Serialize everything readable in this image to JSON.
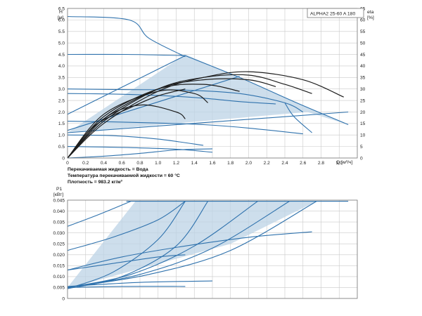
{
  "chart_data": [
    {
      "type": "line",
      "title": "ALPHA2 25-60 A 180",
      "xlabel": "Q [м³/ч]",
      "ylabel": "H [м]",
      "ylabel_right": "eta [%]",
      "xlim": [
        0,
        3.2
      ],
      "ylim": [
        0,
        6.5
      ],
      "ylim_right": [
        0,
        65
      ],
      "xticks": [
        "0",
        "0.2",
        "0.4",
        "0.6",
        "0.8",
        "1.0",
        "1.2",
        "1.4",
        "1.6",
        "1.8",
        "2.0",
        "2.2",
        "2.4",
        "2.6",
        "2.8",
        "3.0"
      ],
      "yticks": [
        "0",
        "0.5",
        "1.0",
        "1.5",
        "2.0",
        "2.5",
        "3.0",
        "3.5",
        "4.0",
        "4.5",
        "5.0",
        "5.5",
        "6.0",
        "6.5"
      ],
      "yticks_right": [
        "0",
        "5",
        "10",
        "15",
        "20",
        "25",
        "30",
        "35",
        "40",
        "45",
        "50",
        "55",
        "60",
        "65"
      ],
      "grid": true,
      "shaded_region": [
        [
          0,
          1.1
        ],
        [
          1.3,
          4.5
        ],
        [
          3.1,
          1.45
        ],
        [
          2.65,
          2.0
        ]
      ],
      "series": [
        {
          "kind": "pump",
          "x": [
            0,
            0.65,
            1.3
          ],
          "y": [
            4.5,
            4.5,
            4.45
          ]
        },
        {
          "kind": "pump",
          "x": [
            1.3,
            1.9,
            2.5,
            3.1
          ],
          "y": [
            4.45,
            3.5,
            2.45,
            1.45
          ]
        },
        {
          "kind": "pump",
          "x": [
            0,
            0.68,
            0.9,
            1.3
          ],
          "y": [
            6.15,
            6.0,
            5.2,
            4.4
          ]
        },
        {
          "kind": "pump",
          "x": [
            0,
            0.7,
            1.3,
            1.9,
            2.4,
            2.6
          ],
          "y": [
            3.0,
            2.97,
            2.95,
            2.8,
            2.4,
            2.0
          ]
        },
        {
          "kind": "pump",
          "x": [
            2.4,
            2.5,
            2.7
          ],
          "y": [
            2.4,
            1.8,
            1.1
          ]
        },
        {
          "kind": "pump",
          "x": [
            0,
            0.5,
            1.0,
            1.5,
            1.9,
            2.3
          ],
          "y": [
            2.8,
            2.78,
            2.72,
            2.6,
            2.45,
            2.35
          ]
        },
        {
          "kind": "pump",
          "x": [
            0,
            0.5,
            1.0,
            1.5,
            2.0,
            2.6
          ],
          "y": [
            1.6,
            1.57,
            1.52,
            1.45,
            1.3,
            1.05
          ]
        },
        {
          "kind": "pump",
          "x": [
            0,
            0.5,
            1.0,
            1.5
          ],
          "y": [
            1.0,
            0.97,
            0.82,
            0.55
          ]
        },
        {
          "kind": "pump",
          "x": [
            0,
            0.6,
            1.2,
            1.6
          ],
          "y": [
            0.5,
            0.46,
            0.38,
            0.25
          ]
        },
        {
          "kind": "pump",
          "x": [
            0,
            0.4,
            0.8,
            1.2,
            1.6
          ],
          "y": [
            0.0,
            0.08,
            0.2,
            0.35,
            0.4
          ]
        },
        {
          "kind": "pump",
          "x": [
            0,
            1.3
          ],
          "y": [
            1.9,
            4.45
          ]
        },
        {
          "kind": "pump",
          "x": [
            0,
            1.9
          ],
          "y": [
            1.2,
            3.55
          ]
        },
        {
          "kind": "pump",
          "x": [
            0,
            3.1
          ],
          "y": [
            1.1,
            2.0
          ]
        },
        {
          "kind": "efficiency",
          "x": [
            0,
            0.4,
            1.0,
            1.5,
            2.0,
            2.6,
            3.05
          ],
          "y": [
            0,
            15,
            29,
            35,
            37.5,
            34,
            26.5
          ]
        },
        {
          "kind": "efficiency",
          "x": [
            0,
            0.4,
            1.0,
            1.5,
            2.0,
            2.4,
            2.7
          ],
          "y": [
            0,
            16,
            30,
            35,
            36,
            32,
            28
          ]
        },
        {
          "kind": "efficiency",
          "x": [
            0,
            0.4,
            1.0,
            1.5,
            2.0,
            2.3
          ],
          "y": [
            0,
            17,
            30,
            34,
            34,
            31
          ]
        },
        {
          "kind": "efficiency",
          "x": [
            0,
            0.4,
            1.0,
            1.5,
            1.9
          ],
          "y": [
            0,
            18,
            30,
            32,
            29
          ]
        },
        {
          "kind": "efficiency",
          "x": [
            0,
            0.4,
            1.0,
            1.4,
            1.55
          ],
          "y": [
            0,
            19,
            29,
            28,
            24
          ]
        },
        {
          "kind": "efficiency",
          "x": [
            0,
            0.4,
            0.8,
            1.2,
            1.3
          ],
          "y": [
            0,
            17,
            23,
            20,
            17
          ]
        },
        {
          "kind": "efficiency",
          "x": [
            0,
            0.3,
            0.7,
            1.0,
            1.3
          ],
          "y": [
            0,
            14,
            22,
            27,
            30
          ]
        }
      ]
    },
    {
      "type": "line",
      "title": "",
      "xlabel": "",
      "ylabel": "P1 [кВт]",
      "xlim": [
        0,
        3.2
      ],
      "ylim": [
        0,
        0.045
      ],
      "yticks": [
        "0",
        "0.005",
        "0.010",
        "0.015",
        "0.020",
        "0.025",
        "0.030",
        "0.035",
        "0.040",
        "0.045"
      ],
      "grid": true,
      "shaded_region": [
        [
          0,
          0.005
        ],
        [
          0.75,
          0.0445
        ],
        [
          2.75,
          0.0445
        ],
        [
          1.8,
          0.025
        ],
        [
          0,
          0.0045
        ]
      ],
      "series": [
        {
          "x": [
            0.65,
            3.1
          ],
          "y": [
            0.0445,
            0.0445
          ]
        },
        {
          "x": [
            0,
            0.35,
            0.7
          ],
          "y": [
            0.033,
            0.0385,
            0.0445
          ]
        },
        {
          "x": [
            0,
            0.5,
            1.0,
            1.3
          ],
          "y": [
            0.022,
            0.028,
            0.036,
            0.0445
          ]
        },
        {
          "x": [
            0,
            0.5,
            1.0,
            1.3
          ],
          "y": [
            0.0045,
            0.012,
            0.027,
            0.0445
          ]
        },
        {
          "x": [
            0,
            0.6,
            1.2,
            1.55
          ],
          "y": [
            0.0045,
            0.01,
            0.024,
            0.0445
          ]
        },
        {
          "x": [
            0,
            0.7,
            1.4,
            2.1
          ],
          "y": [
            0.005,
            0.011,
            0.024,
            0.0445
          ]
        },
        {
          "x": [
            0,
            0.8,
            1.6,
            2.45
          ],
          "y": [
            0.005,
            0.011,
            0.023,
            0.0445
          ]
        },
        {
          "x": [
            0,
            0.9,
            1.8,
            2.75
          ],
          "y": [
            0.005,
            0.011,
            0.022,
            0.0445
          ]
        },
        {
          "x": [
            0,
            0.6,
            1.3,
            2.0,
            2.7
          ],
          "y": [
            0.013,
            0.019,
            0.024,
            0.028,
            0.0305
          ]
        },
        {
          "x": [
            0,
            0.5,
            1.0,
            1.3
          ],
          "y": [
            0.013,
            0.016,
            0.019,
            0.02
          ]
        },
        {
          "x": [
            0,
            0.4,
            0.9,
            1.6
          ],
          "y": [
            0.0055,
            0.0065,
            0.0075,
            0.008
          ]
        },
        {
          "x": [
            0,
            0.6,
            1.3
          ],
          "y": [
            0.005,
            0.0055,
            0.0055
          ]
        }
      ]
    }
  ],
  "notes": [
    "Перекачиваемая жидкость = Вода",
    "Температура перекачиваемой жидкости = 60 °C",
    "Плотность = 983.2 кг/м³"
  ],
  "colors": {
    "pump": "#2f72ad",
    "efficiency": "#1d1d1d",
    "shade": "#bcd3e6"
  }
}
